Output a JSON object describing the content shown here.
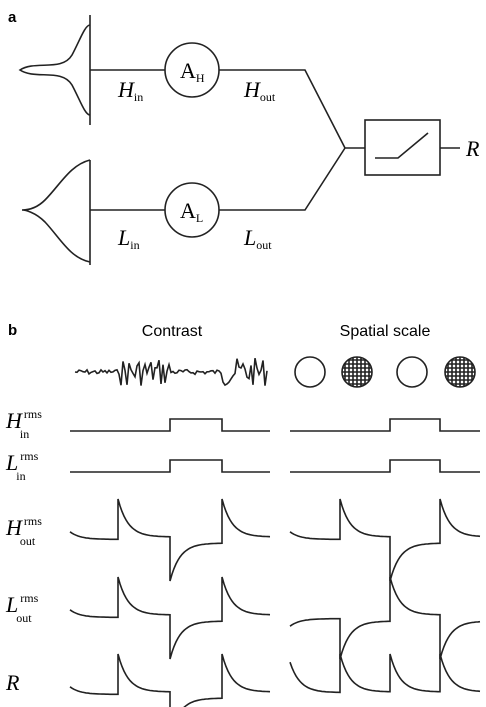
{
  "panel_a": {
    "label": "a",
    "h_in": {
      "main": "H",
      "sub": "in"
    },
    "h_out": {
      "main": "H",
      "sub": "out"
    },
    "l_in": {
      "main": "L",
      "sub": "in"
    },
    "l_out": {
      "main": "L",
      "sub": "out"
    },
    "amp_h": {
      "main": "A",
      "sub": "H"
    },
    "amp_l": {
      "main": "A",
      "sub": "L"
    },
    "output": "R"
  },
  "panel_b": {
    "label": "b",
    "columns": [
      "Contrast",
      "Spatial scale"
    ],
    "rows": [
      {
        "main": "H",
        "sup": "rms",
        "sub": "in"
      },
      {
        "main": "L",
        "sup": "rms",
        "sub": "in"
      },
      {
        "main": "H",
        "sup": "rms",
        "sub": "out"
      },
      {
        "main": "L",
        "sup": "rms",
        "sub": "out"
      },
      {
        "main": "R"
      }
    ]
  }
}
